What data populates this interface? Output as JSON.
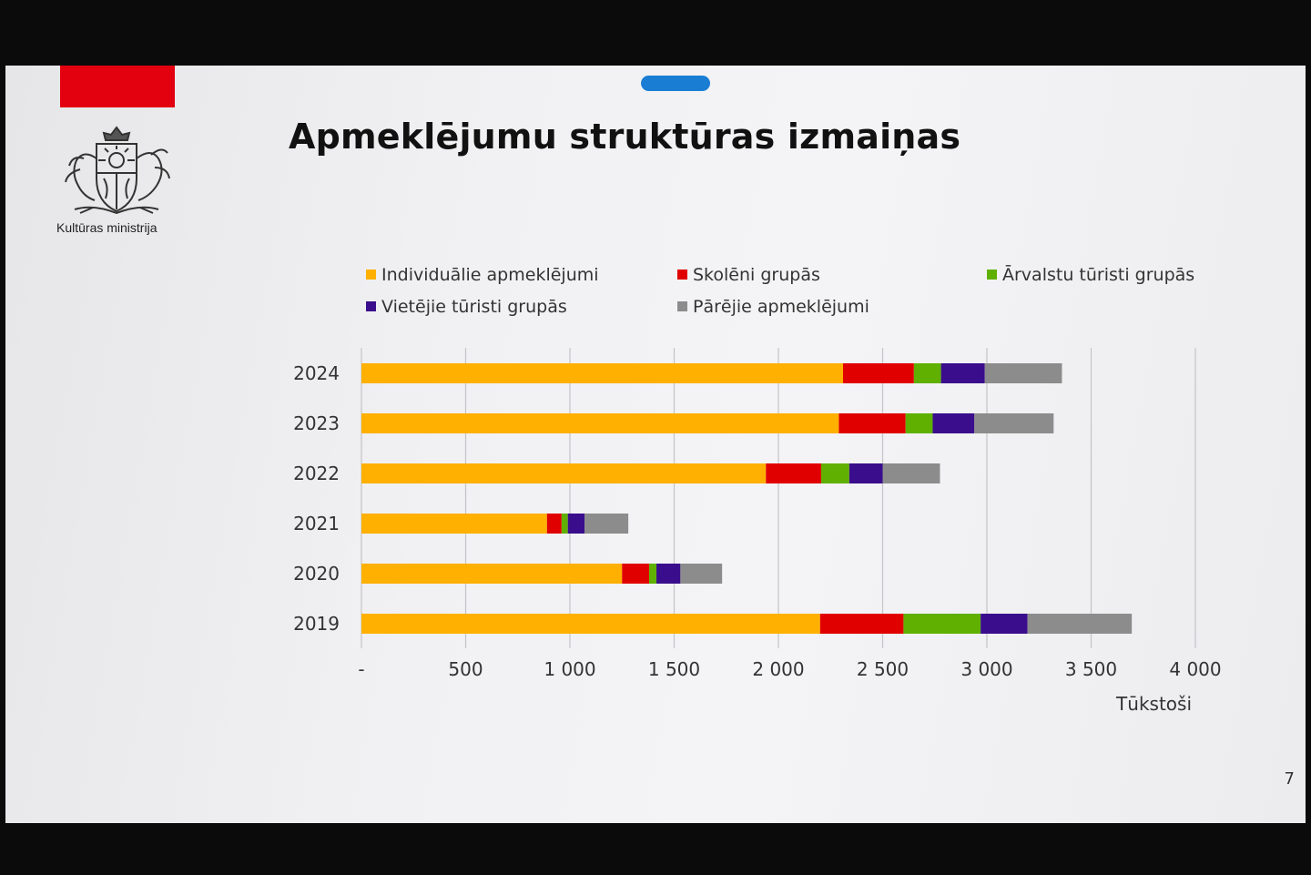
{
  "slide": {
    "title": "Apmeklējumu struktūras izmaiņas",
    "ministry": "Kultūras ministrija",
    "page_number": "7",
    "logo_icon": "latvia-coat-of-arms-icon",
    "accent_color": "#e3000f"
  },
  "chart_data": {
    "type": "bar",
    "orientation": "horizontal",
    "stacked": true,
    "title": "Apmeklējumu struktūras izmaiņas",
    "categories": [
      "2024",
      "2023",
      "2022",
      "2021",
      "2020",
      "2019"
    ],
    "series": [
      {
        "name": "Individuālie apmeklējumi",
        "color": "#ffb000",
        "values": [
          2310,
          2290,
          1940,
          890,
          1250,
          2200
        ]
      },
      {
        "name": "Skolēni grupās",
        "color": "#e00000",
        "values": [
          340,
          320,
          265,
          70,
          130,
          400
        ]
      },
      {
        "name": "Ārvalstu tūristi grupās",
        "color": "#5fb000",
        "values": [
          130,
          130,
          135,
          30,
          35,
          370
        ]
      },
      {
        "name": "Vietējie tūristi grupās",
        "color": "#3a0d8c",
        "values": [
          210,
          200,
          160,
          80,
          115,
          225
        ]
      },
      {
        "name": "Pārējie apmeklējumi",
        "color": "#8c8c8c",
        "values": [
          370,
          380,
          275,
          210,
          200,
          500
        ]
      }
    ],
    "x_ticks": [
      "-",
      "500",
      "1 000",
      "1 500",
      "2 000",
      "2 500",
      "3 000",
      "3 500",
      "4 000"
    ],
    "xlim": [
      0,
      4000
    ],
    "x_unit": "Tūkstoši",
    "grid": "vertical",
    "legend": "top"
  }
}
